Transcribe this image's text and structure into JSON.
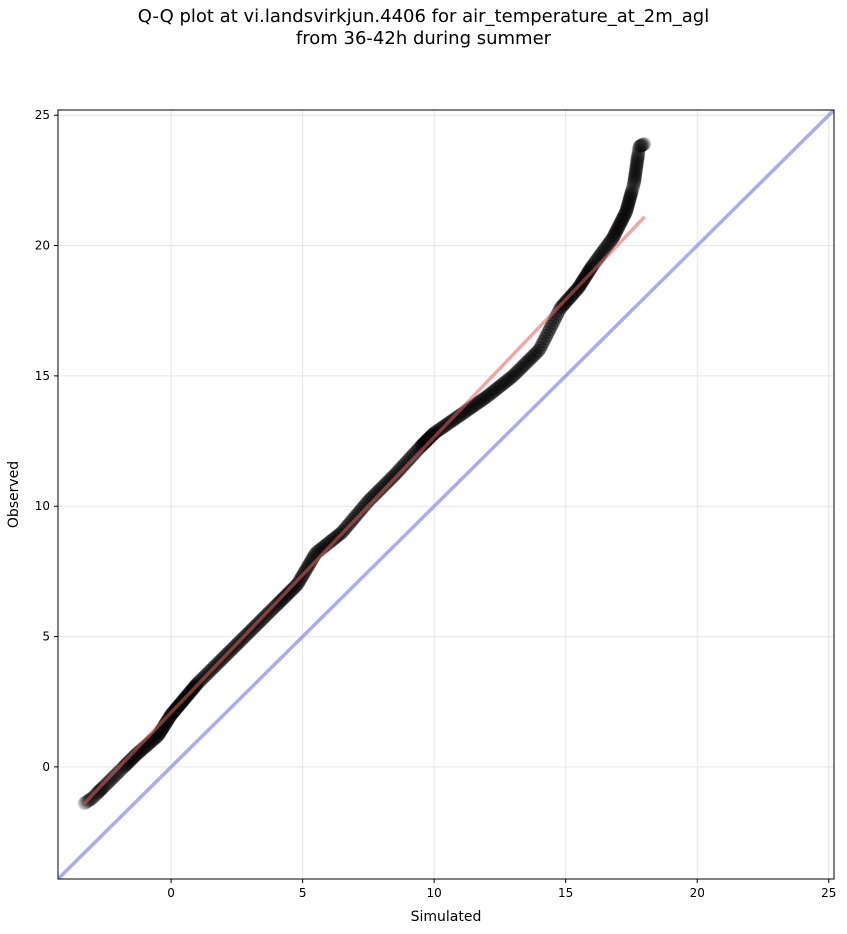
{
  "chart_data": {
    "type": "scatter",
    "title": "Q-Q plot at vi.landsvirkjun.4406 for air_temperature_at_2m_agl",
    "subtitle": "from 36-42h during summer",
    "xlabel": "Simulated",
    "ylabel": "Observed",
    "xlim": [
      -4.3,
      25.2
    ],
    "ylim": [
      -4.3,
      25.2
    ],
    "xticks": [
      0,
      5,
      10,
      15,
      20,
      25
    ],
    "yticks": [
      0,
      5,
      10,
      15,
      20,
      25
    ],
    "grid": true,
    "colors": {
      "points": "#000000",
      "fit_line": "#e06060",
      "identity_line": "#8888ee"
    },
    "quantile_knots": [
      [
        -3.3,
        -1.4
      ],
      [
        -3.0,
        -1.2
      ],
      [
        -2.6,
        -0.8
      ],
      [
        -2.0,
        -0.2
      ],
      [
        -1.3,
        0.5
      ],
      [
        -0.5,
        1.2
      ],
      [
        0.0,
        2.0
      ],
      [
        0.5,
        2.6
      ],
      [
        1.0,
        3.2
      ],
      [
        2.0,
        4.2
      ],
      [
        3.0,
        5.2
      ],
      [
        4.0,
        6.2
      ],
      [
        4.8,
        7.0
      ],
      [
        5.5,
        8.2
      ],
      [
        6.5,
        9.0
      ],
      [
        7.5,
        10.2
      ],
      [
        8.5,
        11.2
      ],
      [
        9.5,
        12.3
      ],
      [
        10.0,
        12.8
      ],
      [
        11.0,
        13.5
      ],
      [
        12.0,
        14.2
      ],
      [
        13.0,
        15.0
      ],
      [
        14.0,
        16.0
      ],
      [
        14.8,
        17.6
      ],
      [
        15.5,
        18.4
      ],
      [
        16.0,
        19.2
      ],
      [
        16.8,
        20.3
      ],
      [
        17.3,
        21.3
      ],
      [
        17.6,
        22.4
      ],
      [
        17.7,
        23.1
      ],
      [
        17.8,
        23.8
      ],
      [
        18.0,
        23.9
      ]
    ],
    "point_count": 420,
    "fit_line": {
      "x": [
        -3.3,
        18.0
      ],
      "y": [
        -1.4,
        21.1
      ]
    },
    "identity_line": {
      "x": [
        -4.3,
        25.2
      ],
      "y": [
        -4.3,
        25.2
      ]
    }
  }
}
